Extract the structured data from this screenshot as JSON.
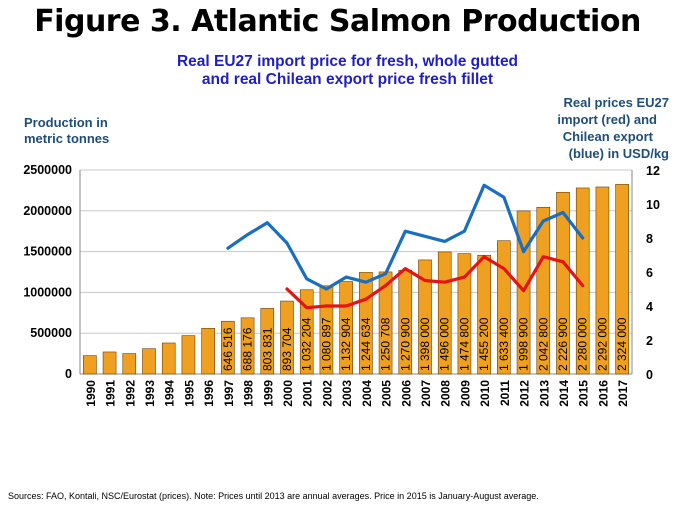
{
  "title": "Figure 3. Atlantic Salmon Production",
  "subtitle_line1": "Real EU27 import price for fresh, whole gutted",
  "subtitle_line2": "and real Chilean export price fresh fillet",
  "y_left_label_1": "Production in",
  "y_left_label_2": "metric tonnes",
  "y_right_label_1": "Real prices EU27",
  "y_right_label_2": "import (red) and",
  "y_right_label_3": "Chilean export",
  "y_right_label_4": "(blue) in USD/kg",
  "source_note": "Sources: FAO, Kontali, NSC/Eurostat (prices). Note: Prices  until 2013 are annual averages. Price in 2015 is January-August average.",
  "chart_data": {
    "type": "bar",
    "categories": [
      "1990",
      "1991",
      "1992",
      "1993",
      "1994",
      "1995",
      "1996",
      "1997",
      "1998",
      "1999",
      "2000",
      "2001",
      "2002",
      "2003",
      "2004",
      "2005",
      "2006",
      "2007",
      "2008",
      "2009",
      "2010",
      "2011",
      "2012",
      "2013",
      "2014",
      "2015",
      "2016",
      "2017"
    ],
    "ylim": [
      0,
      2500000
    ],
    "y_ticks": [
      "0",
      "500000",
      "1000000",
      "1500000",
      "2000000",
      "2500000"
    ],
    "y2lim": [
      0,
      12
    ],
    "y2_ticks": [
      "0",
      "2",
      "4",
      "6",
      "8",
      "10",
      "12"
    ],
    "grid": true,
    "colors": {
      "bar": "#f0a020",
      "bar_edge": "#6a4000",
      "eu_line": "#e41414",
      "chile_line": "#1a6ec0",
      "grid": "#c8c8c8"
    },
    "series": [
      {
        "values": [
          225000,
          270000,
          250000,
          310000,
          380000,
          470000,
          560000,
          646516,
          688176,
          803831,
          893704,
          1032204,
          1080897,
          1132904,
          1244634,
          1250708,
          1270900,
          1398000,
          1496000,
          1474800,
          1455200,
          1633400,
          1998900,
          2042800,
          2226900,
          2280000,
          2292000,
          2324000
        ],
        "labels": [
          "",
          "",
          "",
          "",
          "",
          "",
          "",
          "646 516",
          "688 176",
          "803 831",
          "893 704",
          "1 032 204",
          "1 080 897",
          "1 132 904",
          "1 244 634",
          "1 250 708",
          "1 270 900",
          "1 398 000",
          "1 496 000",
          "1 474 800",
          "1 455 200",
          "1 633 400",
          "1 998 900",
          "2 042 800",
          "2 226 900",
          "2 280 000",
          "2 292 000",
          "2 324 000"
        ]
      },
      {
        "axis": "right",
        "values": [
          null,
          null,
          null,
          null,
          null,
          null,
          null,
          null,
          null,
          null,
          5.0,
          3.9,
          4.0,
          4.0,
          4.4,
          5.2,
          6.2,
          5.5,
          5.4,
          5.7,
          6.9,
          6.2,
          4.9,
          6.9,
          6.6,
          5.2,
          null,
          null
        ]
      },
      {
        "axis": "right",
        "values": [
          null,
          null,
          null,
          null,
          null,
          null,
          null,
          7.4,
          8.2,
          8.9,
          7.7,
          5.6,
          5.0,
          5.7,
          5.4,
          5.9,
          8.4,
          8.1,
          7.8,
          8.4,
          11.1,
          10.4,
          7.2,
          9.0,
          9.5,
          8.0,
          null,
          null
        ]
      }
    ]
  }
}
